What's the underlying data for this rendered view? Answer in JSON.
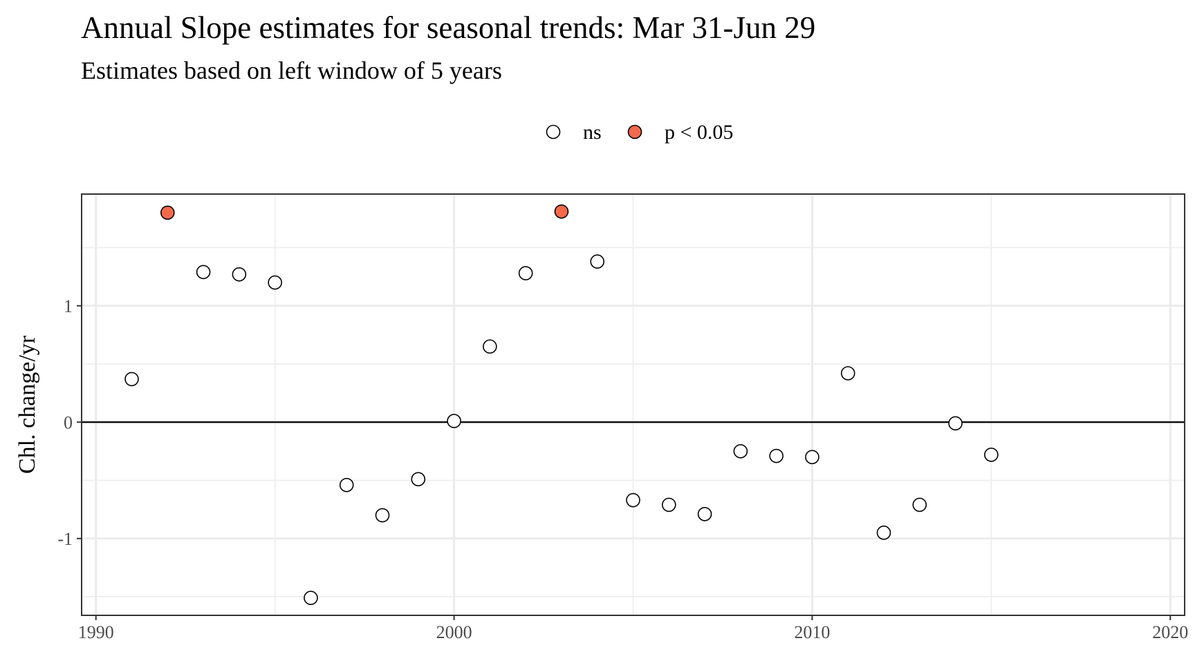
{
  "chart_data": {
    "type": "scatter",
    "title": "Annual Slope estimates for seasonal trends: Mar 31-Jun 29",
    "subtitle": "Estimates based on left window of 5 years",
    "xlabel": "",
    "ylabel": "Chl. change/yr",
    "xlim": [
      1989.6,
      2020.4
    ],
    "ylim": [
      -1.66,
      1.96
    ],
    "x_ticks": [
      1990,
      2000,
      2010,
      2020
    ],
    "x_tick_labels": [
      "1990",
      "2000",
      "2010",
      "2020"
    ],
    "y_ticks": [
      -1,
      0,
      1
    ],
    "y_tick_labels": [
      "-1",
      "0",
      "1"
    ],
    "grid": true,
    "reference_line_y": 0,
    "legend": {
      "position": "top",
      "entries": [
        {
          "label": "ns",
          "fill": "#ffffff"
        },
        {
          "label": "p < 0.05",
          "fill": "#f4694c"
        }
      ]
    },
    "points": [
      {
        "x": 1991,
        "y": 0.37,
        "group": "ns"
      },
      {
        "x": 1992,
        "y": 1.8,
        "group": "p < 0.05"
      },
      {
        "x": 1993,
        "y": 1.29,
        "group": "ns"
      },
      {
        "x": 1994,
        "y": 1.27,
        "group": "ns"
      },
      {
        "x": 1995,
        "y": 1.2,
        "group": "ns"
      },
      {
        "x": 1996,
        "y": -1.51,
        "group": "ns"
      },
      {
        "x": 1997,
        "y": -0.54,
        "group": "ns"
      },
      {
        "x": 1998,
        "y": -0.8,
        "group": "ns"
      },
      {
        "x": 1999,
        "y": -0.49,
        "group": "ns"
      },
      {
        "x": 2000,
        "y": 0.01,
        "group": "ns"
      },
      {
        "x": 2001,
        "y": 0.65,
        "group": "ns"
      },
      {
        "x": 2002,
        "y": 1.28,
        "group": "ns"
      },
      {
        "x": 2003,
        "y": 1.81,
        "group": "p < 0.05"
      },
      {
        "x": 2004,
        "y": 1.38,
        "group": "ns"
      },
      {
        "x": 2005,
        "y": -0.67,
        "group": "ns"
      },
      {
        "x": 2006,
        "y": -0.71,
        "group": "ns"
      },
      {
        "x": 2007,
        "y": -0.79,
        "group": "ns"
      },
      {
        "x": 2008,
        "y": -0.25,
        "group": "ns"
      },
      {
        "x": 2009,
        "y": -0.29,
        "group": "ns"
      },
      {
        "x": 2010,
        "y": -0.3,
        "group": "ns"
      },
      {
        "x": 2011,
        "y": 0.42,
        "group": "ns"
      },
      {
        "x": 2012,
        "y": -0.95,
        "group": "ns"
      },
      {
        "x": 2013,
        "y": -0.71,
        "group": "ns"
      },
      {
        "x": 2014,
        "y": -0.01,
        "group": "ns"
      },
      {
        "x": 2015,
        "y": -0.28,
        "group": "ns"
      }
    ]
  }
}
